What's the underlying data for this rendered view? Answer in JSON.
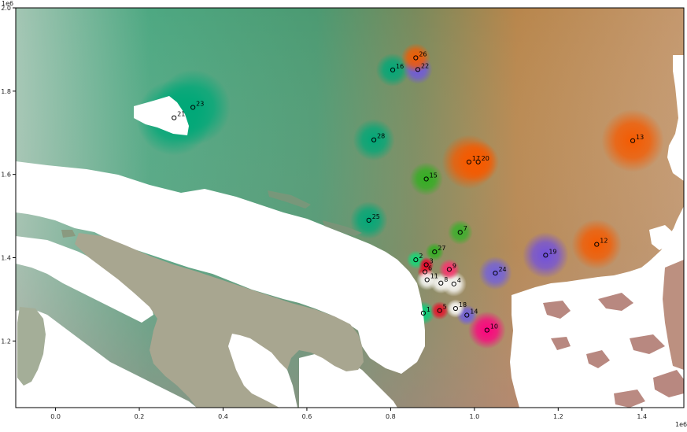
{
  "axes": {
    "x_multiplier": "1e6",
    "y_multiplier": "1e6",
    "x_ticks": [
      {
        "value": 0.0,
        "label": "0.0"
      },
      {
        "value": 0.2,
        "label": "0.2"
      },
      {
        "value": 0.4,
        "label": "0.4"
      },
      {
        "value": 0.6,
        "label": "0.6"
      },
      {
        "value": 0.8,
        "label": "0.8"
      },
      {
        "value": 1.0,
        "label": "1.0"
      },
      {
        "value": 1.2,
        "label": "1.2"
      },
      {
        "value": 1.4,
        "label": "1.4"
      }
    ],
    "y_ticks": [
      {
        "value": 1.2,
        "label": "1.2"
      },
      {
        "value": 1.4,
        "label": "1.4"
      },
      {
        "value": 1.6,
        "label": "1.6"
      },
      {
        "value": 1.8,
        "label": "1.8"
      },
      {
        "value": 2.0,
        "label": "2.0"
      }
    ],
    "xlim": [
      -0.095,
      1.5
    ],
    "ylim": [
      1.04,
      2.0
    ]
  },
  "points": [
    {
      "label": "1",
      "x": 0.878,
      "y": 1.267,
      "color": "#00d27a",
      "radius": 0.028
    },
    {
      "label": "2",
      "x": 0.86,
      "y": 1.395,
      "color": "#10dc78",
      "radius": 0.022
    },
    {
      "label": "3",
      "x": 0.885,
      "y": 1.383,
      "color": "#e8002a",
      "radius": 0.018
    },
    {
      "label": "4",
      "x": 0.951,
      "y": 1.337,
      "color": "#ffffff",
      "radius": 0.03
    },
    {
      "label": "5",
      "x": 0.917,
      "y": 1.273,
      "color": "#e8102a",
      "radius": 0.022
    },
    {
      "label": "6",
      "x": 0.882,
      "y": 1.366,
      "color": "#e8102a",
      "radius": 0.018
    },
    {
      "label": "7",
      "x": 0.966,
      "y": 1.461,
      "color": "#38b02a",
      "radius": 0.03
    },
    {
      "label": "8",
      "x": 0.92,
      "y": 1.339,
      "color": "#ffffff",
      "radius": 0.025
    },
    {
      "label": "9",
      "x": 0.94,
      "y": 1.372,
      "color": "#ff3070",
      "radius": 0.025
    },
    {
      "label": "10",
      "x": 1.03,
      "y": 1.226,
      "color": "#ff0080",
      "radius": 0.045
    },
    {
      "label": "11",
      "x": 0.887,
      "y": 1.347,
      "color": "#ffffff",
      "radius": 0.025
    },
    {
      "label": "12",
      "x": 1.292,
      "y": 1.432,
      "color": "#f55a00",
      "radius": 0.06
    },
    {
      "label": "13",
      "x": 1.378,
      "y": 1.681,
      "color": "#f55a00",
      "radius": 0.075
    },
    {
      "label": "14",
      "x": 0.982,
      "y": 1.262,
      "color": "#7060e0",
      "radius": 0.025
    },
    {
      "label": "15",
      "x": 0.885,
      "y": 1.589,
      "color": "#30b020",
      "radius": 0.04
    },
    {
      "label": "16",
      "x": 0.805,
      "y": 1.851,
      "color": "#00a878",
      "radius": 0.04
    },
    {
      "label": "17",
      "x": 0.987,
      "y": 1.63,
      "color": "#f55a00",
      "radius": 0.065
    },
    {
      "label": "18",
      "x": 0.955,
      "y": 1.278,
      "color": "#ffffff",
      "radius": 0.022
    },
    {
      "label": "19",
      "x": 1.17,
      "y": 1.406,
      "color": "#7050e0",
      "radius": 0.055
    },
    {
      "label": "20",
      "x": 1.009,
      "y": 1.63,
      "color": "#f55a00",
      "radius": 0.05
    },
    {
      "label": "21",
      "x": 0.283,
      "y": 1.736,
      "color": "#00a878",
      "radius": 0.09
    },
    {
      "label": "22",
      "x": 0.865,
      "y": 1.852,
      "color": "#7058e0",
      "radius": 0.035
    },
    {
      "label": "23",
      "x": 0.328,
      "y": 1.761,
      "color": "#00a878",
      "radius": 0.09
    },
    {
      "label": "24",
      "x": 1.05,
      "y": 1.363,
      "color": "#7060e0",
      "radius": 0.04
    },
    {
      "label": "25",
      "x": 0.748,
      "y": 1.49,
      "color": "#00a878",
      "radius": 0.045
    },
    {
      "label": "26",
      "x": 0.86,
      "y": 1.88,
      "color": "#f55a00",
      "radius": 0.035
    },
    {
      "label": "27",
      "x": 0.905,
      "y": 1.414,
      "color": "#30b020",
      "radius": 0.022
    },
    {
      "label": "28",
      "x": 0.76,
      "y": 1.683,
      "color": "#00a878",
      "radius": 0.05
    }
  ],
  "background": {
    "top_left_color": "#a0c4b0",
    "top_mid_color": "#3a9a78",
    "top_right_color": "#c2a07c",
    "bottom_left_color": "#a0aa98",
    "bottom_right_color": "#b89080",
    "sea_color": "#ffffff"
  }
}
